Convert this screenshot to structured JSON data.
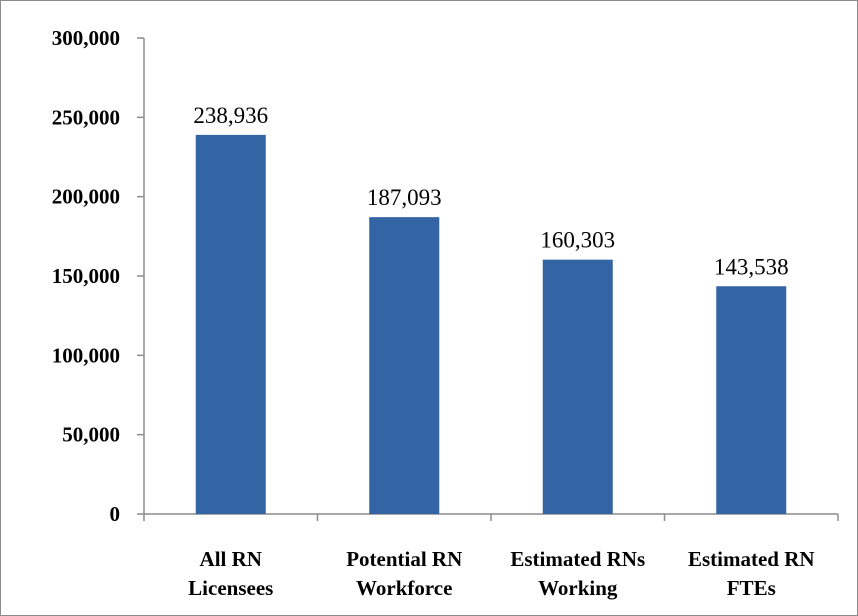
{
  "chart_data": {
    "type": "bar",
    "categories": [
      [
        "All RN",
        "Licensees"
      ],
      [
        "Potential RN",
        "Workforce"
      ],
      [
        "Estimated RNs",
        "Working"
      ],
      [
        "Estimated RN",
        "FTEs"
      ]
    ],
    "values": [
      238936,
      187093,
      160303,
      143538
    ],
    "data_labels": [
      "238,936",
      "187,093",
      "160,303",
      "143,538"
    ],
    "y_ticks": [
      "0",
      "50,000",
      "100,000",
      "150,000",
      "200,000",
      "250,000",
      "300,000"
    ],
    "ylim": [
      0,
      300000
    ],
    "grid": false,
    "legend": "none",
    "bar_color": "#3364A3",
    "title": "",
    "xlabel": "",
    "ylabel": ""
  }
}
